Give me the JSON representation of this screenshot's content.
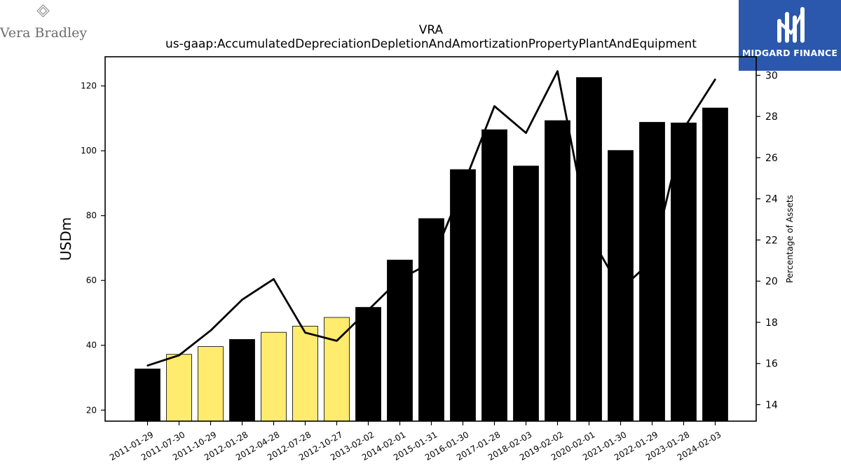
{
  "branding": {
    "left_logo_text": "Vera Bradley",
    "right_logo_text": "MIDGARD FINANCE"
  },
  "colors": {
    "bar_default": "#000000",
    "bar_highlight": "#ffeb6e",
    "line": "#000000",
    "brand_blue": "#2b58ad"
  },
  "chart_data": {
    "type": "bar",
    "title": "VRA",
    "subtitle": "us-gaap:AccumulatedDepreciationDepletionAndAmortizationPropertyPlantAndEquipment",
    "ylabel": "USDm",
    "y2label": "Percentage of Assets",
    "ylim": [
      16.6,
      129
    ],
    "y2lim": [
      13.2,
      30.9
    ],
    "yticks": [
      20,
      40,
      60,
      80,
      100,
      120
    ],
    "y2ticks": [
      14,
      16,
      18,
      20,
      22,
      24,
      26,
      28,
      30
    ],
    "categories": [
      "2011-01-29",
      "2011-07-30",
      "2011-10-29",
      "2012-01-28",
      "2012-04-28",
      "2012-07-28",
      "2012-10-27",
      "2013-02-02",
      "2014-02-01",
      "2015-01-31",
      "2016-01-30",
      "2017-01-28",
      "2018-02-03",
      "2019-02-02",
      "2020-02-01",
      "2021-01-30",
      "2022-01-29",
      "2023-01-28",
      "2024-02-03"
    ],
    "series": [
      {
        "values": [
          32.7,
          37.2,
          39.6,
          41.8,
          44.0,
          45.9,
          48.6,
          51.7,
          66.3,
          79.1,
          94.2,
          106.5,
          95.3,
          109.3,
          122.6,
          100.1,
          108.8,
          108.6,
          113.2
        ]
      },
      {
        "values": [
          15.9,
          16.4,
          17.6,
          19.1,
          20.1,
          17.5,
          17.1,
          18.6,
          20.1,
          20.9,
          24.6,
          28.5,
          27.2,
          30.2,
          22.3,
          19.6,
          21.0,
          27.4,
          29.8
        ]
      }
    ],
    "highlighted": [
      false,
      true,
      true,
      false,
      true,
      true,
      true,
      false,
      false,
      false,
      false,
      false,
      false,
      false,
      false,
      false,
      false,
      false,
      false
    ],
    "grid": false,
    "legend": "none"
  }
}
